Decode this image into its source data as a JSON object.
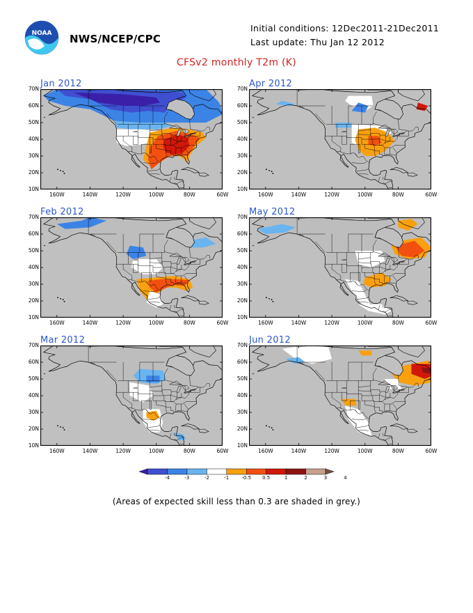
{
  "header": {
    "org": "NWS/NCEP/CPC",
    "initial_conditions": "Initial conditions: 12Dec2011-21Dec2011",
    "last_update": "Last update: Thu Jan 12 2012"
  },
  "title": "CFSv2 monthly T2m (K)",
  "panels": [
    {
      "label": "Jan 2012",
      "dominant": "warm east, cold north"
    },
    {
      "label": "Apr 2012",
      "dominant": "warm central"
    },
    {
      "label": "Feb 2012",
      "dominant": "warm south"
    },
    {
      "label": "May 2012",
      "dominant": "warm central and northeast"
    },
    {
      "label": "Mar 2012",
      "dominant": "weak"
    },
    {
      "label": "Jun 2012",
      "dominant": "warm northeast"
    }
  ],
  "axes": {
    "lat_ticks": [
      "70N",
      "60N",
      "50N",
      "40N",
      "30N",
      "20N",
      "10N"
    ],
    "lon_ticks": [
      "160W",
      "140W",
      "120W",
      "100W",
      "80W",
      "60W"
    ]
  },
  "colorbar": {
    "ticks": [
      "-4",
      "-3",
      "-2",
      "-1",
      "-0.5",
      "0.5",
      "1",
      "2",
      "3",
      "4"
    ],
    "colors": [
      "#3b1fa8",
      "#3f4fd0",
      "#3c83e6",
      "#6ab4f0",
      "#ffffff",
      "#f8a010",
      "#f25010",
      "#d01808",
      "#8c1410",
      "#c8a090",
      "#7a5040"
    ]
  },
  "colors": {
    "grey_mask": "#c0c0c0",
    "label_blue": "#2a57c9",
    "title_red": "#d42020"
  },
  "footnote": "(Areas of expected skill less than 0.3 are shaded in grey.)"
}
